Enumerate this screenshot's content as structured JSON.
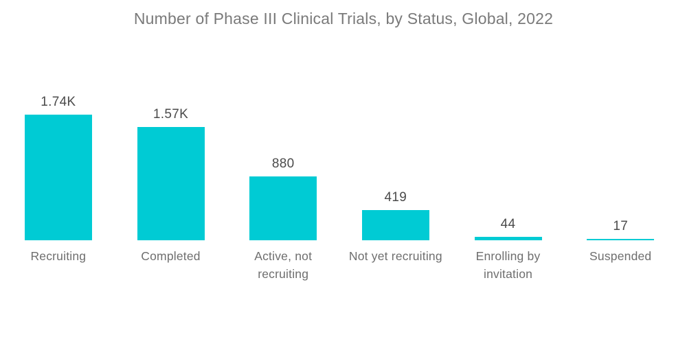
{
  "chart_data": {
    "type": "bar",
    "orientation": "vertical",
    "title": "Number of Phase III Clinical Trials, by Status, Global, 2022",
    "categories": [
      "Recruiting",
      "Completed",
      "Active, not recruiting",
      "Not yet recruiting",
      "Enrolling by invitation",
      "Suspended"
    ],
    "values": [
      1740,
      1570,
      880,
      419,
      44,
      17
    ],
    "value_labels": [
      "1.74K",
      "1.57K",
      "880",
      "419",
      "44",
      "17"
    ],
    "label_lines": [
      [
        "Recruiting"
      ],
      [
        "Completed"
      ],
      [
        "Active, not",
        "recruiting"
      ],
      [
        "Not yet recruiting"
      ],
      [
        "Enrolling by",
        "invitation"
      ],
      [
        "Suspended"
      ]
    ],
    "xlabel": "",
    "ylabel": "",
    "ylim": [
      0,
      1740
    ],
    "grid": false,
    "legend": false,
    "colors": {
      "bar": "#00cbd4",
      "title": "#7a7a7a",
      "value_label": "#4b4b4b",
      "category_label": "#6e6e6e",
      "background": "#ffffff"
    }
  }
}
